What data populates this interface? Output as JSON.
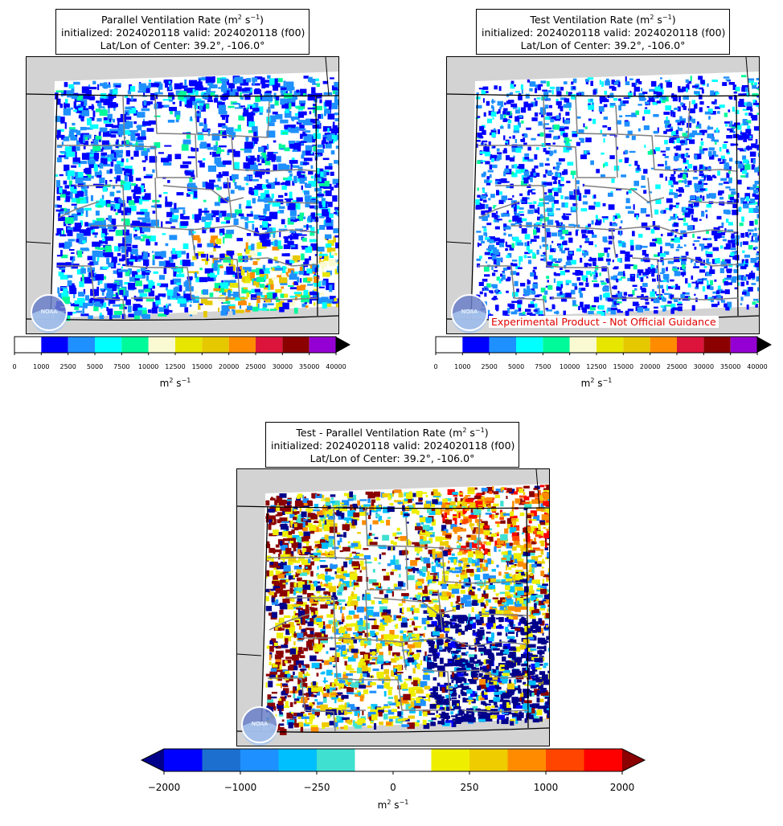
{
  "panels": {
    "parallel": {
      "title_main": "Parallel Ventilation Rate (m",
      "title_sup1": "2",
      "title_mid": " s",
      "title_sup2": "−1",
      "title_end": ")",
      "line2": "initialized: 2024020118 valid: 2024020118 (f00)",
      "line3": "Lat/Lon of Center: 39.2°, -106.0°"
    },
    "test": {
      "title_main": "Test Ventilation Rate (m",
      "title_sup1": "2",
      "title_mid": " s",
      "title_sup2": "−1",
      "title_end": ")",
      "line2": "initialized: 2024020118 valid: 2024020118 (f00)",
      "line3": "Lat/Lon of Center: 39.2°, -106.0°"
    },
    "diff": {
      "title_main": "Test - Parallel Ventilation Rate (m",
      "title_sup1": "2",
      "title_mid": " s",
      "title_sup2": "−1",
      "title_end": ")",
      "line2": "initialized: 2024020118 valid: 2024020118 (f00)",
      "line3": "Lat/Lon of Center: 39.2°, -106.0°"
    }
  },
  "logo_text": "NOAA",
  "disclaimer": "Experimental Product - Not Official Guidance",
  "colorbar_vr": {
    "ticks": [
      "0",
      "1000",
      "2500",
      "5000",
      "7500",
      "10000",
      "12500",
      "15000",
      "20000",
      "25000",
      "30000",
      "35000",
      "40000"
    ],
    "colors": [
      "#ffffff",
      "#0000ff",
      "#1e90ff",
      "#00ffff",
      "#00fa9a",
      "#fafad2",
      "#e6e600",
      "#e6c800",
      "#ff8c00",
      "#dc143c",
      "#8b0000",
      "#9400d3"
    ],
    "over_color": "#000000",
    "unit_base": "m",
    "unit_sup1": "2",
    "unit_mid": " s",
    "unit_sup2": "−1"
  },
  "colorbar_diff": {
    "ticks": [
      "−2000",
      "−1000",
      "−250",
      "0",
      "250",
      "1000",
      "2000"
    ],
    "colors": [
      "#0000ff",
      "#1c6fcf",
      "#1e90ff",
      "#00bfff",
      "#40e0d0",
      "#ffffff",
      "#ffffff",
      "#eeee00",
      "#eecc00",
      "#ff8c00",
      "#ff4500",
      "#ff0000"
    ],
    "under_color": "#00008b",
    "over_color": "#8b0000",
    "unit_base": "m",
    "unit_sup1": "2",
    "unit_mid": " s",
    "unit_sup2": "−1"
  }
}
